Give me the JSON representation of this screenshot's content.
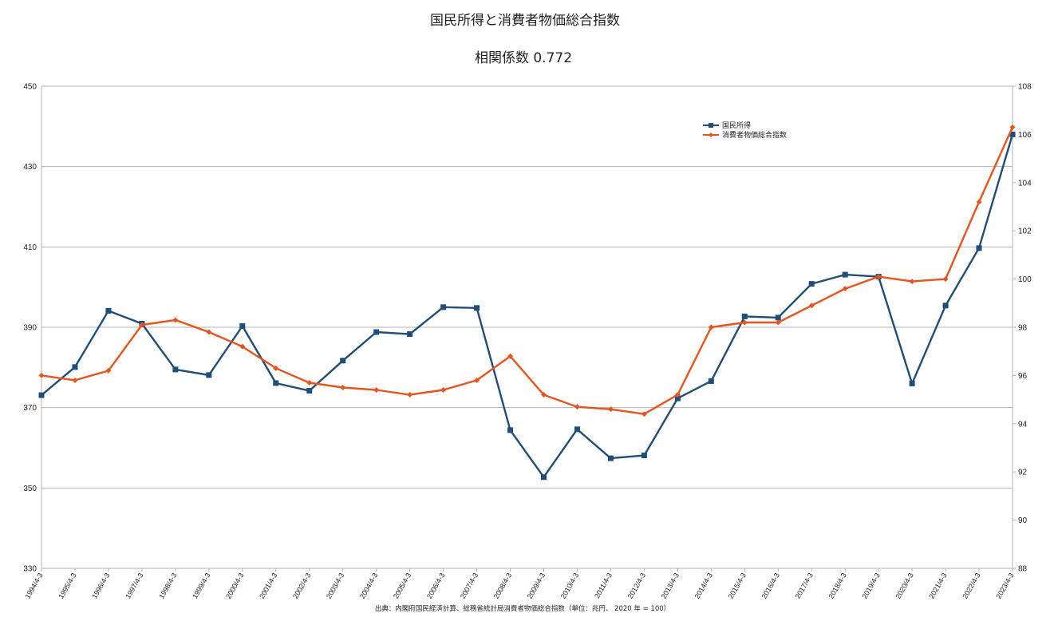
{
  "chart_data": {
    "type": "line",
    "title": "国民所得と消費者物価総合指数",
    "subtitle": "相関係数 0.772",
    "source": "出典：内閣府国民経済計算、総務省統計局消費者物価総合指数（単位：兆円、 2020 年 = 100）",
    "x": [
      "1994/4-3",
      "1995/4-3",
      "1996/4-3",
      "1997/4-3",
      "1998/4-3",
      "1999/4-3",
      "2000/4-3",
      "2001/4-3",
      "2002/4-3",
      "2003/4-3",
      "2004/4-3",
      "2005/4-3",
      "2006/4-3",
      "2007/4-3",
      "2008/4-3",
      "2009/4-3",
      "2010/4-3",
      "2011/4-3",
      "2012/4-3",
      "2013/4-3",
      "2014/4-3",
      "2015/4-3",
      "2016/4-3",
      "2017/4-3",
      "2018/4-3",
      "2019/4-3",
      "2020/4-3",
      "2021/4-3",
      "2022/4-3",
      "2023/4-3"
    ],
    "left_axis": {
      "min": 330,
      "max": 450,
      "ticks": [
        "330",
        "350",
        "370",
        "390",
        "410",
        "430",
        "450"
      ]
    },
    "right_axis": {
      "min": 88,
      "max": 108,
      "ticks": [
        "88",
        "90",
        "92",
        "94",
        "96",
        "98",
        "100",
        "102",
        "104",
        "106",
        "108"
      ]
    },
    "grid": true,
    "legend_position": "top-right",
    "series": [
      {
        "name": "国民所得",
        "axis": "left",
        "color": "#1f4e79",
        "marker": "square",
        "values": [
          373.1,
          380.1,
          394.1,
          390.9,
          379.5,
          378.1,
          390.3,
          376.1,
          374.2,
          381.7,
          388.8,
          388.3,
          395.0,
          394.8,
          364.4,
          352.7,
          364.6,
          357.4,
          358.1,
          372.3,
          376.6,
          392.7,
          392.4,
          400.8,
          403.1,
          402.6,
          376.0,
          395.4,
          409.7,
          438.0
        ]
      },
      {
        "name": "消費者物価総合指数",
        "axis": "right",
        "color": "#e8541e",
        "marker": "diamond",
        "values": [
          96.0,
          95.8,
          96.2,
          98.1,
          98.3,
          97.8,
          97.2,
          96.3,
          95.7,
          95.5,
          95.4,
          95.2,
          95.4,
          95.8,
          96.8,
          95.2,
          94.7,
          94.6,
          94.4,
          95.2,
          98.0,
          98.2,
          98.2,
          98.9,
          99.6,
          100.1,
          99.9,
          100.0,
          103.2,
          106.3
        ]
      }
    ]
  }
}
